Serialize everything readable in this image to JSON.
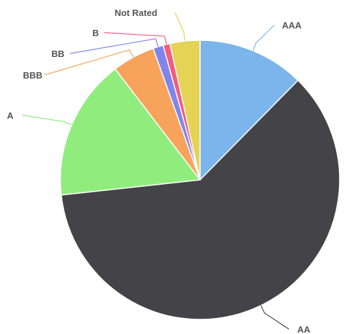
{
  "chart_data": {
    "type": "pie",
    "title": "",
    "legend": "none",
    "slices": [
      {
        "label": "AAA",
        "value": 12.5,
        "color": "#7cb5ec"
      },
      {
        "label": "AA",
        "value": 61.5,
        "color": "#434348"
      },
      {
        "label": "A",
        "value": 16.5,
        "color": "#90ed7d"
      },
      {
        "label": "BBB",
        "value": 5.0,
        "color": "#f7a35c"
      },
      {
        "label": "BB",
        "value": 1.2,
        "color": "#8085e9"
      },
      {
        "label": "B",
        "value": 0.8,
        "color": "#f15c80"
      },
      {
        "label": "Not Rated",
        "value": 3.5,
        "color": "#e4d354"
      }
    ]
  }
}
